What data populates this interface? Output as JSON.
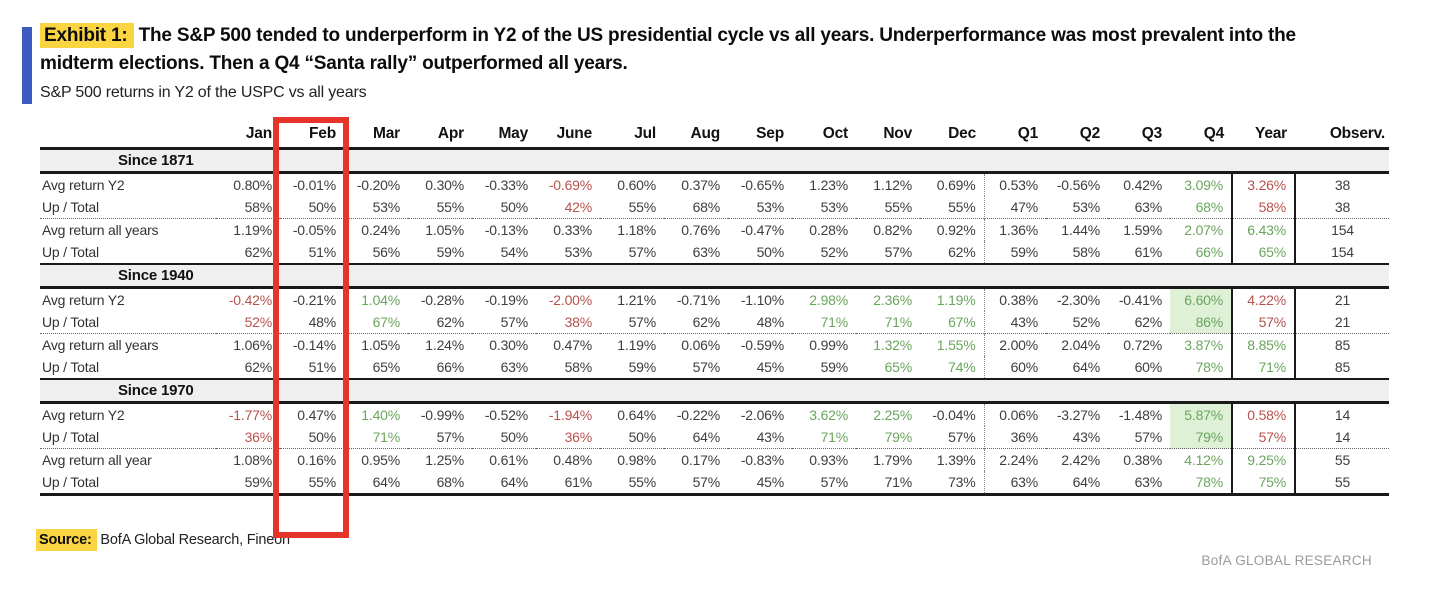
{
  "exhibit": {
    "tag": "Exhibit 1:",
    "title_line1_rest": " The S&P 500 tended to underperform in Y2 of the US presidential cycle vs all years. Underperformance was most prevalent into the",
    "title_line2": "midterm elections. Then a Q4 “Santa rally” outperformed all years.",
    "subtitle": "S&P 500 returns in Y2 of the USPC vs all years"
  },
  "source": {
    "tag": "Source:",
    "text": " BofA Global Research, Fineon"
  },
  "footer_brand": "BofA GLOBAL RESEARCH",
  "annotations": {
    "highlight_rect_column": "Feb"
  },
  "colors": {
    "red": "#b5534c",
    "green": "#6aa55e",
    "greenbg": "#def0d5",
    "band": "#efefef",
    "rectred": "#e5352a",
    "yellow": "#fbd441",
    "blue": "#3b5bc0",
    "footergray": "#9a9a9a"
  },
  "table": {
    "columns": [
      "Jan",
      "Feb",
      "Mar",
      "Apr",
      "May",
      "June",
      "Jul",
      "Aug",
      "Sep",
      "Oct",
      "Nov",
      "Dec",
      "Q1",
      "Q2",
      "Q3",
      "Q4",
      "Year",
      "Observ."
    ],
    "sections": [
      {
        "label": "Since 1871",
        "rows": [
          {
            "label": "Avg return Y2",
            "cells": [
              [
                "0.80%",
                ""
              ],
              [
                "-0.01%",
                ""
              ],
              [
                "-0.20%",
                ""
              ],
              [
                "0.30%",
                ""
              ],
              [
                "-0.33%",
                ""
              ],
              [
                "-0.69%",
                "r"
              ],
              [
                "0.60%",
                ""
              ],
              [
                "0.37%",
                ""
              ],
              [
                "-0.65%",
                ""
              ],
              [
                "1.23%",
                ""
              ],
              [
                "1.12%",
                ""
              ],
              [
                "0.69%",
                ""
              ],
              [
                "0.53%",
                ""
              ],
              [
                "-0.56%",
                ""
              ],
              [
                "0.42%",
                ""
              ],
              [
                "3.09%",
                "g"
              ],
              [
                "3.26%",
                "r"
              ],
              [
                "38",
                ""
              ]
            ]
          },
          {
            "label": "Up / Total",
            "cells": [
              [
                "58%",
                ""
              ],
              [
                "50%",
                ""
              ],
              [
                "53%",
                ""
              ],
              [
                "55%",
                ""
              ],
              [
                "50%",
                ""
              ],
              [
                "42%",
                "r"
              ],
              [
                "55%",
                ""
              ],
              [
                "68%",
                ""
              ],
              [
                "53%",
                ""
              ],
              [
                "53%",
                ""
              ],
              [
                "55%",
                ""
              ],
              [
                "55%",
                ""
              ],
              [
                "47%",
                ""
              ],
              [
                "53%",
                ""
              ],
              [
                "63%",
                ""
              ],
              [
                "68%",
                "g"
              ],
              [
                "58%",
                "r"
              ],
              [
                "38",
                ""
              ]
            ]
          },
          {
            "label": "Avg return all years",
            "cells": [
              [
                "1.19%",
                ""
              ],
              [
                "-0.05%",
                ""
              ],
              [
                "0.24%",
                ""
              ],
              [
                "1.05%",
                ""
              ],
              [
                "-0.13%",
                ""
              ],
              [
                "0.33%",
                ""
              ],
              [
                "1.18%",
                ""
              ],
              [
                "0.76%",
                ""
              ],
              [
                "-0.47%",
                ""
              ],
              [
                "0.28%",
                ""
              ],
              [
                "0.82%",
                ""
              ],
              [
                "0.92%",
                ""
              ],
              [
                "1.36%",
                ""
              ],
              [
                "1.44%",
                ""
              ],
              [
                "1.59%",
                ""
              ],
              [
                "2.07%",
                "g"
              ],
              [
                "6.43%",
                "g"
              ],
              [
                "154",
                ""
              ]
            ]
          },
          {
            "label": "Up / Total",
            "cells": [
              [
                "62%",
                ""
              ],
              [
                "51%",
                ""
              ],
              [
                "56%",
                ""
              ],
              [
                "59%",
                ""
              ],
              [
                "54%",
                ""
              ],
              [
                "53%",
                ""
              ],
              [
                "57%",
                ""
              ],
              [
                "63%",
                ""
              ],
              [
                "50%",
                ""
              ],
              [
                "52%",
                ""
              ],
              [
                "57%",
                ""
              ],
              [
                "62%",
                ""
              ],
              [
                "59%",
                ""
              ],
              [
                "58%",
                ""
              ],
              [
                "61%",
                ""
              ],
              [
                "66%",
                "g"
              ],
              [
                "65%",
                "g"
              ],
              [
                "154",
                ""
              ]
            ]
          }
        ]
      },
      {
        "label": "Since 1940",
        "rows": [
          {
            "label": "Avg return Y2",
            "cells": [
              [
                "-0.42%",
                "r"
              ],
              [
                "-0.21%",
                ""
              ],
              [
                "1.04%",
                "g"
              ],
              [
                "-0.28%",
                ""
              ],
              [
                "-0.19%",
                ""
              ],
              [
                "-2.00%",
                "r"
              ],
              [
                "1.21%",
                ""
              ],
              [
                "-0.71%",
                ""
              ],
              [
                "-1.10%",
                ""
              ],
              [
                "2.98%",
                "g"
              ],
              [
                "2.36%",
                "g"
              ],
              [
                "1.19%",
                "g"
              ],
              [
                "0.38%",
                ""
              ],
              [
                "-2.30%",
                ""
              ],
              [
                "-0.41%",
                ""
              ],
              [
                "6.60%",
                "gh"
              ],
              [
                "4.22%",
                "r"
              ],
              [
                "21",
                ""
              ]
            ]
          },
          {
            "label": "Up / Total",
            "cells": [
              [
                "52%",
                "r"
              ],
              [
                "48%",
                ""
              ],
              [
                "67%",
                "g"
              ],
              [
                "62%",
                ""
              ],
              [
                "57%",
                ""
              ],
              [
                "38%",
                "r"
              ],
              [
                "57%",
                ""
              ],
              [
                "62%",
                ""
              ],
              [
                "48%",
                ""
              ],
              [
                "71%",
                "g"
              ],
              [
                "71%",
                "g"
              ],
              [
                "67%",
                "g"
              ],
              [
                "43%",
                ""
              ],
              [
                "52%",
                ""
              ],
              [
                "62%",
                ""
              ],
              [
                "86%",
                "gh"
              ],
              [
                "57%",
                "r"
              ],
              [
                "21",
                ""
              ]
            ]
          },
          {
            "label": "Avg return all years",
            "cells": [
              [
                "1.06%",
                ""
              ],
              [
                "-0.14%",
                ""
              ],
              [
                "1.05%",
                ""
              ],
              [
                "1.24%",
                ""
              ],
              [
                "0.30%",
                ""
              ],
              [
                "0.47%",
                ""
              ],
              [
                "1.19%",
                ""
              ],
              [
                "0.06%",
                ""
              ],
              [
                "-0.59%",
                ""
              ],
              [
                "0.99%",
                ""
              ],
              [
                "1.32%",
                "g"
              ],
              [
                "1.55%",
                "g"
              ],
              [
                "2.00%",
                ""
              ],
              [
                "2.04%",
                ""
              ],
              [
                "0.72%",
                ""
              ],
              [
                "3.87%",
                "g"
              ],
              [
                "8.85%",
                "g"
              ],
              [
                "85",
                ""
              ]
            ]
          },
          {
            "label": "Up / Total",
            "cells": [
              [
                "62%",
                ""
              ],
              [
                "51%",
                ""
              ],
              [
                "65%",
                ""
              ],
              [
                "66%",
                ""
              ],
              [
                "63%",
                ""
              ],
              [
                "58%",
                ""
              ],
              [
                "59%",
                ""
              ],
              [
                "57%",
                ""
              ],
              [
                "45%",
                ""
              ],
              [
                "59%",
                ""
              ],
              [
                "65%",
                "g"
              ],
              [
                "74%",
                "g"
              ],
              [
                "60%",
                ""
              ],
              [
                "64%",
                ""
              ],
              [
                "60%",
                ""
              ],
              [
                "78%",
                "g"
              ],
              [
                "71%",
                "g"
              ],
              [
                "85",
                ""
              ]
            ]
          }
        ]
      },
      {
        "label": "Since 1970",
        "rows": [
          {
            "label": "Avg return Y2",
            "cells": [
              [
                "-1.77%",
                "r"
              ],
              [
                "0.47%",
                ""
              ],
              [
                "1.40%",
                "g"
              ],
              [
                "-0.99%",
                ""
              ],
              [
                "-0.52%",
                ""
              ],
              [
                "-1.94%",
                "r"
              ],
              [
                "0.64%",
                ""
              ],
              [
                "-0.22%",
                ""
              ],
              [
                "-2.06%",
                ""
              ],
              [
                "3.62%",
                "g"
              ],
              [
                "2.25%",
                "g"
              ],
              [
                "-0.04%",
                ""
              ],
              [
                "0.06%",
                ""
              ],
              [
                "-3.27%",
                ""
              ],
              [
                "-1.48%",
                ""
              ],
              [
                "5.87%",
                "gh"
              ],
              [
                "0.58%",
                "r"
              ],
              [
                "14",
                ""
              ]
            ]
          },
          {
            "label": "Up / Total",
            "cells": [
              [
                "36%",
                "r"
              ],
              [
                "50%",
                ""
              ],
              [
                "71%",
                "g"
              ],
              [
                "57%",
                ""
              ],
              [
                "50%",
                ""
              ],
              [
                "36%",
                "r"
              ],
              [
                "50%",
                ""
              ],
              [
                "64%",
                ""
              ],
              [
                "43%",
                ""
              ],
              [
                "71%",
                "g"
              ],
              [
                "79%",
                "g"
              ],
              [
                "57%",
                ""
              ],
              [
                "36%",
                ""
              ],
              [
                "43%",
                ""
              ],
              [
                "57%",
                ""
              ],
              [
                "79%",
                "gh"
              ],
              [
                "57%",
                "r"
              ],
              [
                "14",
                ""
              ]
            ]
          },
          {
            "label": "Avg return all year",
            "cells": [
              [
                "1.08%",
                ""
              ],
              [
                "0.16%",
                ""
              ],
              [
                "0.95%",
                ""
              ],
              [
                "1.25%",
                ""
              ],
              [
                "0.61%",
                ""
              ],
              [
                "0.48%",
                ""
              ],
              [
                "0.98%",
                ""
              ],
              [
                "0.17%",
                ""
              ],
              [
                "-0.83%",
                ""
              ],
              [
                "0.93%",
                ""
              ],
              [
                "1.79%",
                ""
              ],
              [
                "1.39%",
                ""
              ],
              [
                "2.24%",
                ""
              ],
              [
                "2.42%",
                ""
              ],
              [
                "0.38%",
                ""
              ],
              [
                "4.12%",
                "g"
              ],
              [
                "9.25%",
                "g"
              ],
              [
                "55",
                ""
              ]
            ]
          },
          {
            "label": "Up / Total",
            "cells": [
              [
                "59%",
                ""
              ],
              [
                "55%",
                ""
              ],
              [
                "64%",
                ""
              ],
              [
                "68%",
                ""
              ],
              [
                "64%",
                ""
              ],
              [
                "61%",
                ""
              ],
              [
                "55%",
                ""
              ],
              [
                "57%",
                ""
              ],
              [
                "45%",
                ""
              ],
              [
                "57%",
                ""
              ],
              [
                "71%",
                ""
              ],
              [
                "73%",
                ""
              ],
              [
                "63%",
                ""
              ],
              [
                "64%",
                ""
              ],
              [
                "63%",
                ""
              ],
              [
                "78%",
                "g"
              ],
              [
                "75%",
                "g"
              ],
              [
                "55",
                ""
              ]
            ]
          }
        ]
      }
    ]
  }
}
